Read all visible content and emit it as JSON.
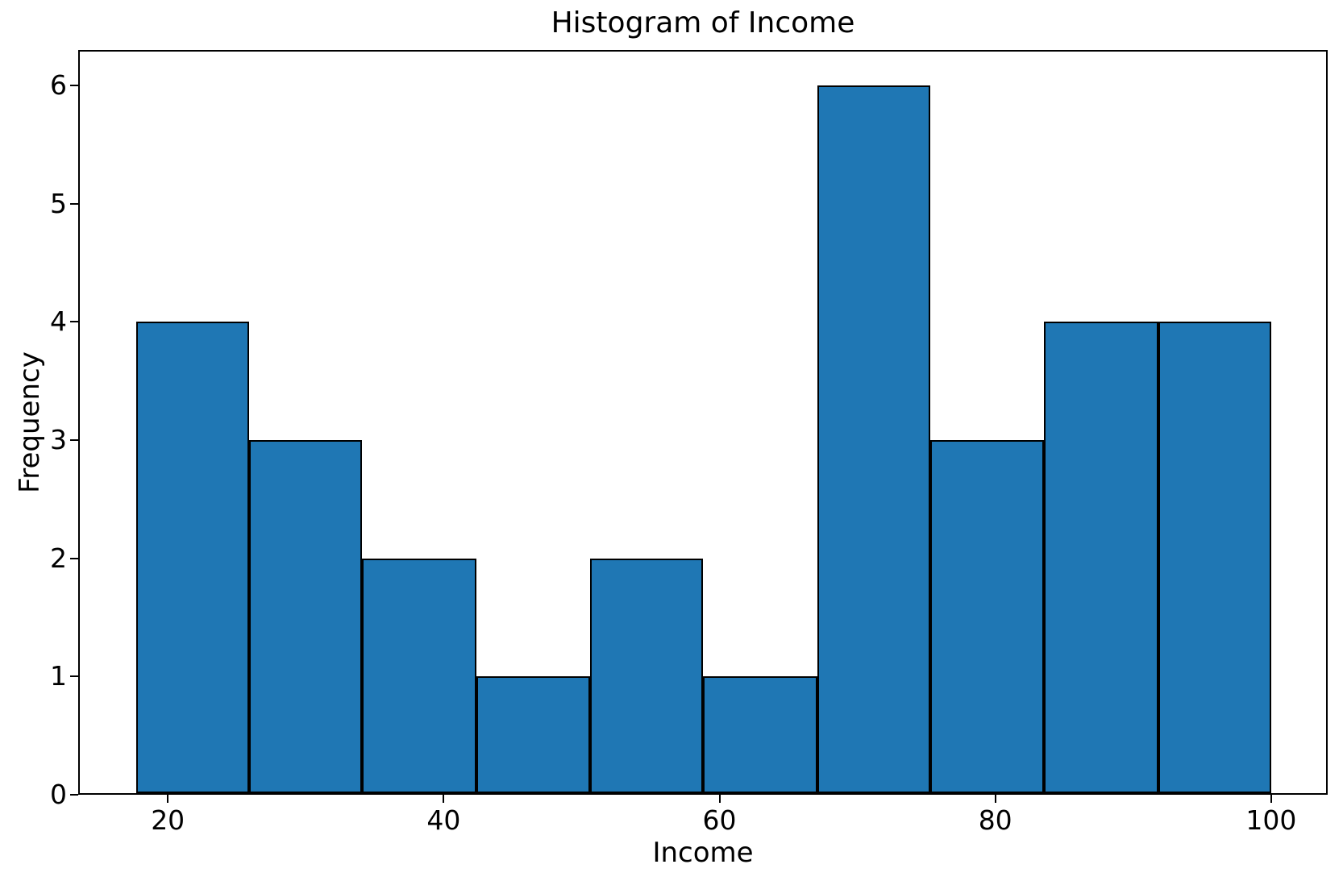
{
  "chart_data": {
    "type": "bar",
    "subtype": "histogram",
    "title": "Histogram of Income",
    "xlabel": "Income",
    "ylabel": "Frequency",
    "bin_edges": [
      17.7,
      25.9,
      34.1,
      42.4,
      50.6,
      58.8,
      67.1,
      75.3,
      83.5,
      91.8,
      100
    ],
    "counts": [
      4,
      3,
      2,
      1,
      2,
      1,
      6,
      3,
      4,
      4
    ],
    "xticks": [
      20,
      40,
      60,
      80,
      100
    ],
    "yticks": [
      0,
      1,
      2,
      3,
      4,
      5,
      6
    ],
    "xlim": [
      13.5,
      104.1
    ],
    "ylim": [
      0,
      6.3
    ],
    "bar_color": "#1f77b4",
    "bar_edge_color": "#000000",
    "axis_color": "#000000",
    "background_color": "#ffffff",
    "grid": false,
    "legend": null
  }
}
